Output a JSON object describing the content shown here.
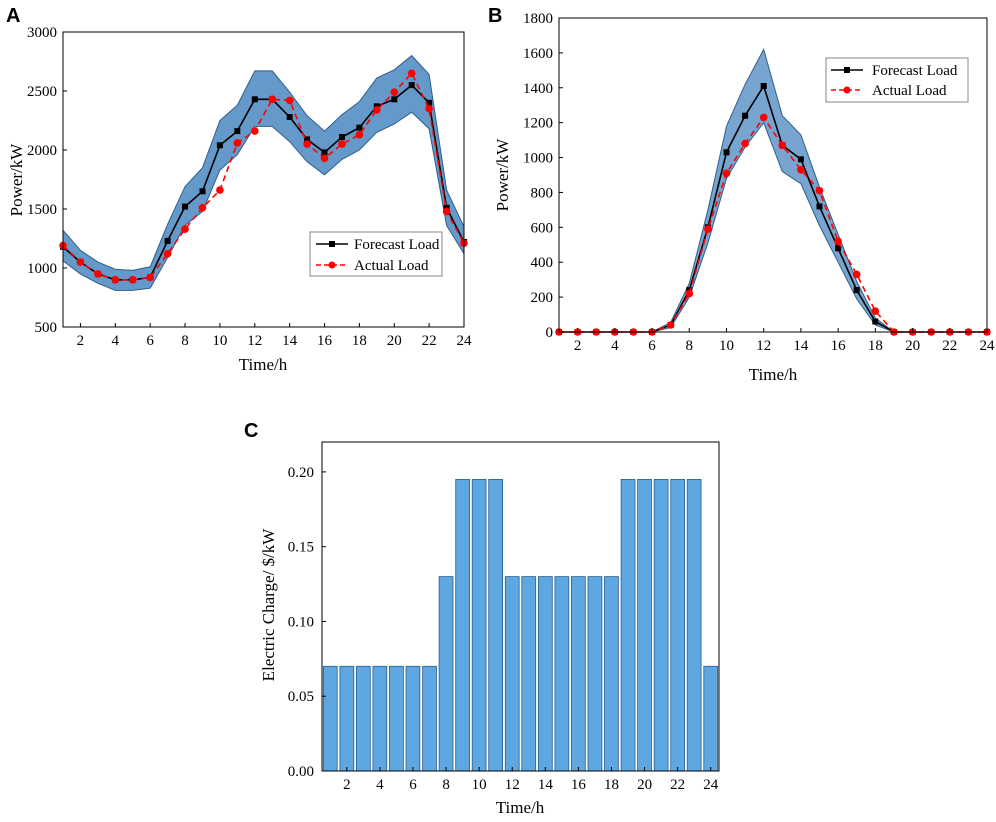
{
  "chart_data": [
    {
      "id": "A",
      "panel_label": "A",
      "type": "line",
      "xlabel": "Time/h",
      "ylabel": "Power/kW",
      "xlim": [
        1,
        24
      ],
      "ylim": [
        500,
        3000
      ],
      "xticks": [
        "2",
        "4",
        "6",
        "8",
        "10",
        "12",
        "14",
        "16",
        "18",
        "20",
        "22",
        "24"
      ],
      "yticks": [
        "500",
        "1000",
        "1500",
        "2000",
        "2500",
        "3000"
      ],
      "x": [
        1,
        2,
        3,
        4,
        5,
        6,
        7,
        8,
        9,
        10,
        11,
        12,
        13,
        14,
        15,
        16,
        17,
        18,
        19,
        20,
        21,
        22,
        23,
        24
      ],
      "series": [
        {
          "name": "Forecast Load",
          "color": "#000000",
          "marker": "square",
          "dash": "solid",
          "values": [
            1180,
            1050,
            950,
            900,
            900,
            920,
            1230,
            1520,
            1650,
            2040,
            2160,
            2430,
            2430,
            2280,
            2090,
            1980,
            2110,
            2190,
            2370,
            2430,
            2550,
            2400,
            1510,
            1220
          ]
        },
        {
          "name": "Actual Load",
          "color": "#ff0000",
          "marker": "circle",
          "dash": "dashed",
          "values": [
            1190,
            1050,
            950,
            900,
            900,
            920,
            1120,
            1330,
            1510,
            1660,
            2060,
            2160,
            2430,
            2420,
            2050,
            1930,
            2050,
            2130,
            2340,
            2490,
            2650,
            2350,
            1480,
            1210
          ]
        }
      ],
      "band": {
        "color": "#4a87c0",
        "upper": [
          1320,
          1150,
          1050,
          990,
          980,
          1010,
          1370,
          1690,
          1850,
          2250,
          2380,
          2670,
          2670,
          2490,
          2290,
          2160,
          2300,
          2410,
          2610,
          2680,
          2800,
          2640,
          1660,
          1350
        ],
        "lower": [
          1060,
          950,
          870,
          810,
          810,
          830,
          1090,
          1360,
          1480,
          1830,
          1960,
          2200,
          2200,
          2070,
          1900,
          1790,
          1920,
          2000,
          2150,
          2220,
          2320,
          2180,
          1360,
          1120
        ]
      },
      "legend": [
        "Forecast Load",
        "Actual Load"
      ],
      "legend_position": "lower-right"
    },
    {
      "id": "B",
      "panel_label": "B",
      "type": "line",
      "xlabel": "Time/h",
      "ylabel": "Power/kW",
      "xlim": [
        1,
        24
      ],
      "ylim": [
        0,
        1800
      ],
      "xticks": [
        "2",
        "4",
        "6",
        "8",
        "10",
        "12",
        "14",
        "16",
        "18",
        "20",
        "22",
        "24"
      ],
      "yticks": [
        "0",
        "200",
        "400",
        "600",
        "800",
        "1000",
        "1200",
        "1400",
        "1600",
        "1800"
      ],
      "x": [
        1,
        2,
        3,
        4,
        5,
        6,
        7,
        8,
        9,
        10,
        11,
        12,
        13,
        14,
        15,
        16,
        17,
        18,
        19,
        20,
        21,
        22,
        23,
        24
      ],
      "series": [
        {
          "name": "Forecast Load",
          "color": "#000000",
          "marker": "square",
          "dash": "solid",
          "values": [
            0,
            0,
            0,
            0,
            0,
            0,
            40,
            240,
            600,
            1030,
            1240,
            1410,
            1070,
            990,
            720,
            480,
            240,
            60,
            0,
            0,
            0,
            0,
            0,
            0
          ]
        },
        {
          "name": "Actual Load",
          "color": "#ff0000",
          "marker": "circle",
          "dash": "dashed",
          "values": [
            0,
            0,
            0,
            0,
            0,
            0,
            40,
            220,
            590,
            910,
            1080,
            1230,
            1070,
            930,
            810,
            520,
            330,
            120,
            0,
            0,
            0,
            0,
            0,
            0
          ]
        }
      ],
      "band": {
        "color": "#4a87c0",
        "upper": [
          0,
          0,
          0,
          0,
          0,
          0,
          55,
          280,
          700,
          1180,
          1420,
          1620,
          1240,
          1130,
          830,
          560,
          290,
          80,
          0,
          0,
          0,
          0,
          0,
          0
        ],
        "lower": [
          0,
          0,
          0,
          0,
          0,
          0,
          25,
          200,
          510,
          880,
          1060,
          1200,
          920,
          850,
          610,
          400,
          190,
          40,
          0,
          0,
          0,
          0,
          0,
          0
        ]
      },
      "legend": [
        "Forecast Load",
        "Actual Load"
      ],
      "legend_position": "top-right"
    },
    {
      "id": "C",
      "panel_label": "C",
      "type": "bar",
      "xlabel": "Time/h",
      "ylabel": "Electric Charge/ $/kW",
      "ylim": [
        0,
        0.22
      ],
      "xticks": [
        "2",
        "4",
        "6",
        "8",
        "10",
        "12",
        "14",
        "16",
        "18",
        "20",
        "22",
        "24"
      ],
      "yticks": [
        "0.00",
        "0.05",
        "0.10",
        "0.15",
        "0.20"
      ],
      "categories": [
        1,
        2,
        3,
        4,
        5,
        6,
        7,
        8,
        9,
        10,
        11,
        12,
        13,
        14,
        15,
        16,
        17,
        18,
        19,
        20,
        21,
        22,
        23,
        24
      ],
      "values": [
        0.07,
        0.07,
        0.07,
        0.07,
        0.07,
        0.07,
        0.07,
        0.13,
        0.195,
        0.195,
        0.195,
        0.13,
        0.13,
        0.13,
        0.13,
        0.13,
        0.13,
        0.13,
        0.195,
        0.195,
        0.195,
        0.195,
        0.195,
        0.07
      ],
      "bar_color": "#5ea7e0"
    }
  ]
}
